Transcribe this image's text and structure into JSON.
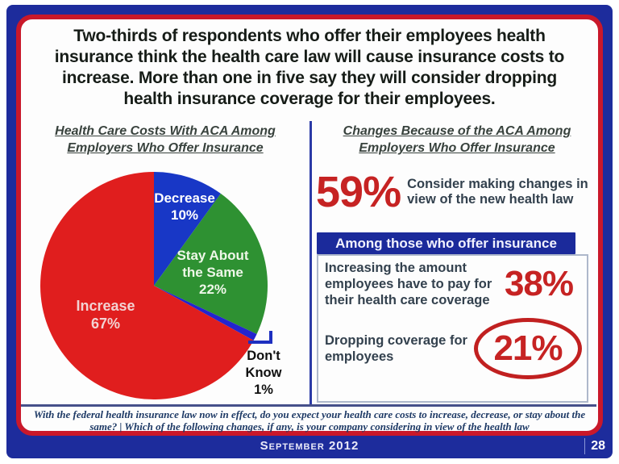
{
  "slide": {
    "title_lines": [
      "Two-thirds of respondents who offer their employees health",
      "insurance think the health care law will cause insurance costs to",
      "increase.  More than one in five say they will consider dropping",
      "health insurance coverage for their employees."
    ],
    "footnote": "With the federal health insurance law now in effect, do you expect your health care costs to increase, decrease, or stay about the same? | Which of the following changes, if any, is your company considering in view of the health law",
    "date_label": "September 2012",
    "page_number": "28"
  },
  "left_panel": {
    "heading_line1": "Health Care Costs With ACA Among",
    "heading_line2": "Employers Who Offer Insurance"
  },
  "right_panel": {
    "heading_line1": "Changes Because of the ACA Among",
    "heading_line2": "Employers Who Offer Insurance",
    "stat": {
      "value": "59%",
      "caption": "Consider making changes in view of the new health law"
    },
    "banner": "Among those who offer insurance",
    "rows": [
      {
        "text": "Increasing the amount employees have to pay for their health care coverage",
        "value": "38%"
      },
      {
        "text": "Dropping coverage for employees",
        "value": "21%"
      }
    ]
  },
  "chart_data": {
    "type": "pie",
    "title": "Health Care Costs With ACA Among Employers Who Offer Insurance",
    "start_position": "12-o-clock, clockwise",
    "slices": [
      {
        "label": "Decrease",
        "pct_label": "10%",
        "value": 10,
        "color": "#1837c6"
      },
      {
        "label": "Stay About the Same",
        "pct_label": "22%",
        "value": 22,
        "color": "#2e9132"
      },
      {
        "label": "Don't Know",
        "pct_label": "1%",
        "value": 1,
        "color": "#2424cf"
      },
      {
        "label": "Increase",
        "pct_label": "67%",
        "value": 67,
        "color": "#e01e1e"
      }
    ],
    "colors": {
      "accent_red": "#c62323",
      "frame_blue": "#1d2c9c",
      "banner_blue": "#1b2a9b"
    }
  }
}
